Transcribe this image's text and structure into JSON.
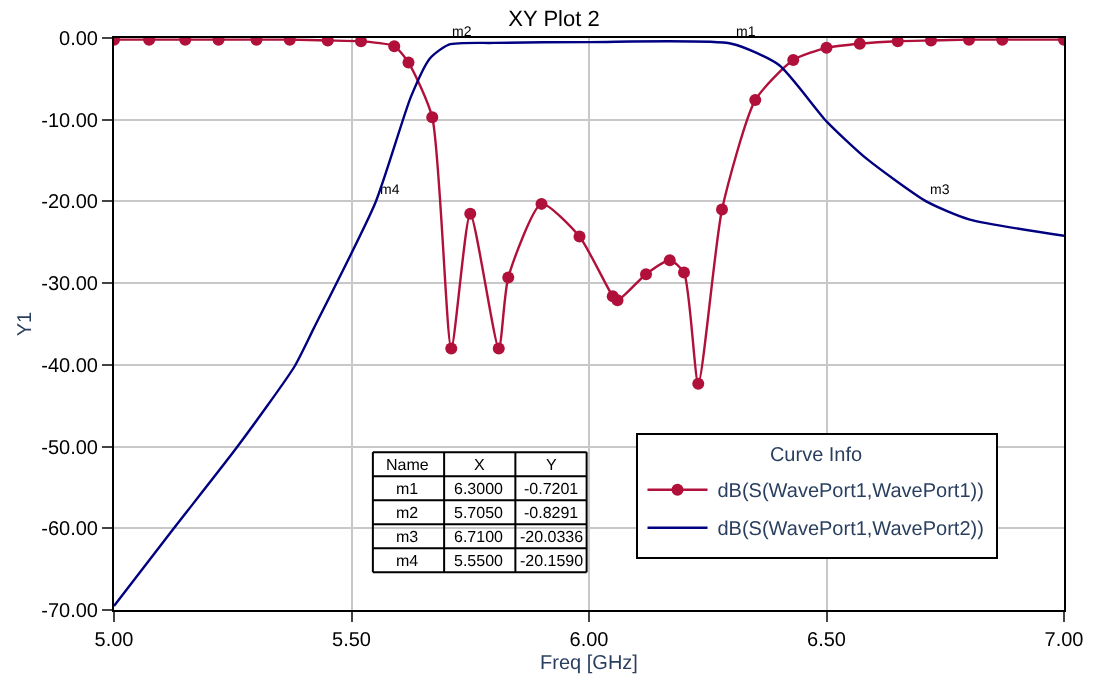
{
  "chart_data": {
    "type": "line",
    "title": "XY Plot 2",
    "xlabel": "Freq [GHz]",
    "ylabel": "Y1",
    "legend_title": "Curve Info",
    "xlim": [
      5.0,
      7.0
    ],
    "ylim": [
      -70,
      0
    ],
    "xticks": [
      {
        "value": 5.0,
        "label": "5.00"
      },
      {
        "value": 5.5,
        "label": "5.50"
      },
      {
        "value": 6.0,
        "label": "6.00"
      },
      {
        "value": 6.5,
        "label": "6.50"
      },
      {
        "value": 7.0,
        "label": "7.00"
      }
    ],
    "yticks": [
      {
        "value": 0,
        "label": "0.00"
      },
      {
        "value": -10,
        "label": "-10.00"
      },
      {
        "value": -20,
        "label": "-20.00"
      },
      {
        "value": -30,
        "label": "-30.00"
      },
      {
        "value": -40,
        "label": "-40.00"
      },
      {
        "value": -50,
        "label": "-50.00"
      },
      {
        "value": -60,
        "label": "-60.00"
      },
      {
        "value": -70,
        "label": "-70.00"
      }
    ],
    "grid": true,
    "legend": "bottom right",
    "series": [
      {
        "name": "dB(S(WavePort1,WavePort1))",
        "color": "#b0103a",
        "marker": "circle",
        "x": [
          5.0,
          5.074,
          5.15,
          5.22,
          5.3,
          5.37,
          5.45,
          5.52,
          5.59,
          5.62,
          5.67,
          5.71,
          5.75,
          5.81,
          5.83,
          5.9,
          5.98,
          6.05,
          6.06,
          6.12,
          6.17,
          6.2,
          6.23,
          6.28,
          6.35,
          6.43,
          6.5,
          6.57,
          6.65,
          6.72,
          6.8,
          6.87,
          7.0
        ],
        "values": [
          -0.2,
          -0.2,
          -0.2,
          -0.2,
          -0.2,
          -0.2,
          -0.3,
          -0.4,
          -1.0,
          -3.0,
          -9.7,
          -38,
          -21.5,
          -38,
          -29.3,
          -20.3,
          -24.3,
          -31.6,
          -32.1,
          -28.9,
          -27.2,
          -28.7,
          -42.3,
          -21.0,
          -7.6,
          -2.7,
          -1.2,
          -0.7,
          -0.4,
          -0.3,
          -0.2,
          -0.2,
          -0.2
        ]
      },
      {
        "name": "dB(S(WavePort1,WavePort2))",
        "color": "#000080",
        "marker": "none",
        "x": [
          5.0,
          5.126,
          5.26,
          5.38,
          5.42,
          5.55,
          5.625,
          5.665,
          5.705,
          5.8,
          6.0,
          6.3,
          6.4,
          6.5,
          6.585,
          6.71,
          6.8,
          7.0
        ],
        "values": [
          -69.5,
          -60,
          -50,
          -40.2,
          -35.6,
          -20.2,
          -7.2,
          -2.5,
          -0.8,
          -0.6,
          -0.5,
          -0.7,
          -3.3,
          -10.2,
          -14.8,
          -20.0,
          -22.2,
          -24.2
        ]
      }
    ],
    "annotations": [
      "Name",
      "X",
      "Y",
      "m1",
      "6.3000",
      "-0.7201",
      "m2",
      "5.7050",
      "-0.8291",
      "m3",
      "6.7100",
      "-20.0336",
      "m4",
      "5.5500",
      "-20.1590",
      {
        "text": "m1",
        "x": 6.3,
        "y": -0.7201
      },
      {
        "text": "m2",
        "x": 5.705,
        "y": -0.8291
      },
      {
        "text": "m3",
        "x": 6.71,
        "y": -20.0336
      },
      {
        "text": "m4",
        "x": 5.55,
        "y": -20.159
      }
    ]
  }
}
